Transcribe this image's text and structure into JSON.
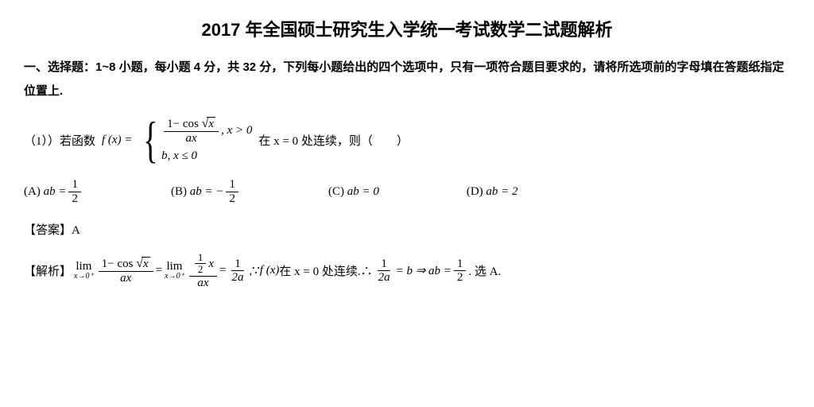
{
  "title": "2017 年全国硕士研究生入学统一考试数学二试题解析",
  "section": "一、选择题：1~8 小题，每小题 4 分，共 32 分，下列每小题给出的四个选项中，只有一项符合题目要求的，请将所选项前的字母填在答题纸指定位置上.",
  "q1": {
    "prefix": "（1））若函数",
    "fx": "f (x) =",
    "case1_num_a": "1− cos",
    "case1_num_b": "x",
    "case1_den": "ax",
    "case1_cond": ", x > 0",
    "case2": "b, x ≤ 0",
    "suffix": "在 x = 0 处连续，则（　　）"
  },
  "opts": {
    "A_label": "(A)",
    "A_lhs": "ab =",
    "A_num": "1",
    "A_den": "2",
    "B_label": "(B)",
    "B_lhs": "ab = −",
    "B_num": "1",
    "B_den": "2",
    "C_label": "(C)",
    "C_text": "ab = 0",
    "D_label": "(D)",
    "D_text": "ab = 2"
  },
  "answer_label": "【答案】",
  "answer_val": "A",
  "exp": {
    "label": "【解析】",
    "lim": "lim",
    "limsub": "x→0⁺",
    "f1_num_a": "1− cos",
    "f1_num_b": "x",
    "f1_den": "ax",
    "eq": "=",
    "f2_top_num": "1",
    "f2_top_den": "2",
    "f2_top_x": "x",
    "f2_den": "ax",
    "f3_num": "1",
    "f3_den": "2a",
    "comma_because": ",∵",
    "fx": "f (x)",
    "txt1": " 在 x = 0 处连续.∴",
    "f4_num": "1",
    "f4_den": "2a",
    "eqb": "= b ⇒ ab =",
    "f5_num": "1",
    "f5_den": "2",
    "tail": ". 选 A."
  }
}
